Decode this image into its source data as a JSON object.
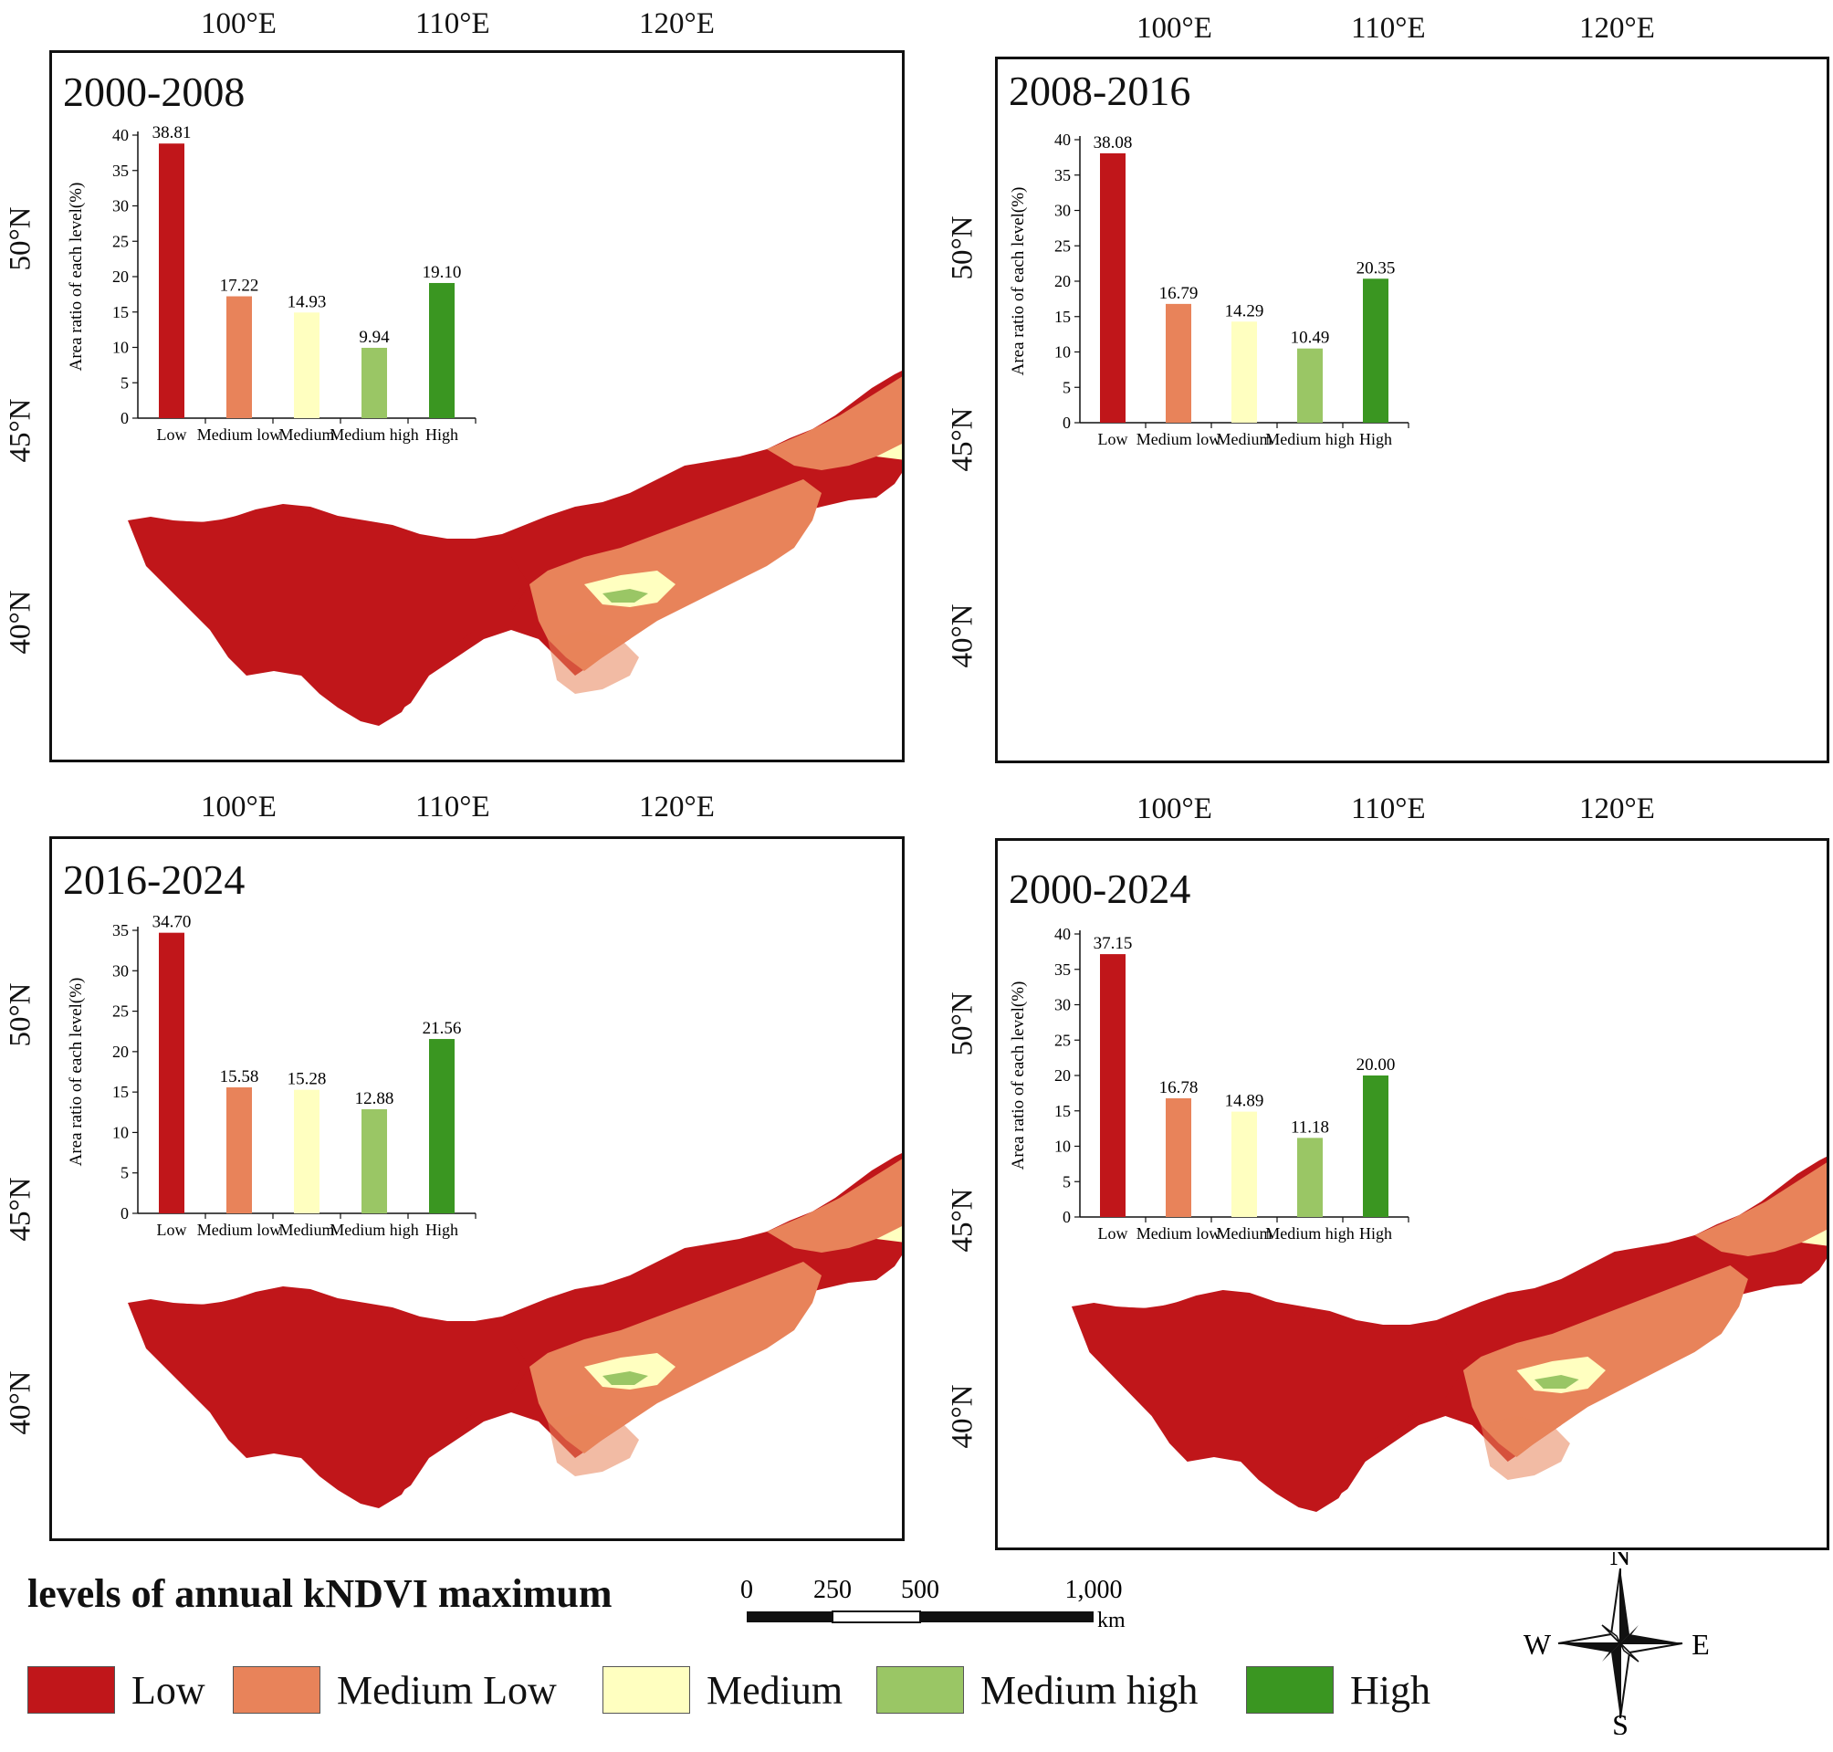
{
  "colors": {
    "low": "#c0161a",
    "medium_low": "#e8835a",
    "medium": "#ffffc0",
    "medium_high": "#9ac665",
    "high": "#3a9621"
  },
  "panels": [
    {
      "period": "2000-2008",
      "lon_labels": [
        "100°E",
        "110°E",
        "120°E"
      ],
      "lat_labels": [
        "50°N",
        "45°N",
        "40°N"
      ],
      "chart_ylabel": "Area ratio of each level(%)",
      "chart_ymax": 40,
      "chart_ticks": [
        "0",
        "5",
        "10",
        "15",
        "20",
        "25",
        "30",
        "35",
        "40"
      ],
      "categories": [
        "Low",
        "Medium low",
        "Medium",
        "Medium high",
        "High"
      ],
      "values": [
        38.81,
        17.22,
        14.93,
        9.94,
        19.1
      ],
      "value_labels": [
        "38.81",
        "17.22",
        "14.93",
        "9.94",
        "19.10"
      ]
    },
    {
      "period": "2008-2016",
      "lon_labels": [
        "100°E",
        "110°E",
        "120°E"
      ],
      "lat_labels": [
        "50°N",
        "45°N",
        "40°N"
      ],
      "chart_ylabel": "Area ratio of each level(%)",
      "chart_ymax": 40,
      "chart_ticks": [
        "0",
        "5",
        "10",
        "15",
        "20",
        "25",
        "30",
        "35",
        "40"
      ],
      "categories": [
        "Low",
        "Medium low",
        "Medium",
        "Medium high",
        "High"
      ],
      "values": [
        38.08,
        16.79,
        14.29,
        10.49,
        20.35
      ],
      "value_labels": [
        "38.08",
        "16.79",
        "14.29",
        "10.49",
        "20.35"
      ]
    },
    {
      "period": "2016-2024",
      "lon_labels": [
        "100°E",
        "110°E",
        "120°E"
      ],
      "lat_labels": [
        "50°N",
        "45°N",
        "40°N"
      ],
      "chart_ylabel": "Area ratio of each level(%)",
      "chart_ymax": 35,
      "chart_ticks": [
        "0",
        "5",
        "10",
        "15",
        "20",
        "25",
        "30",
        "35"
      ],
      "categories": [
        "Low",
        "Medium low",
        "Medium",
        "Medium high",
        "High"
      ],
      "values": [
        34.7,
        15.58,
        15.28,
        12.88,
        21.56
      ],
      "value_labels": [
        "34.70",
        "15.58",
        "15.28",
        "12.88",
        "21.56"
      ]
    },
    {
      "period": "2000-2024",
      "lon_labels": [
        "100°E",
        "110°E",
        "120°E"
      ],
      "lat_labels": [
        "50°N",
        "45°N",
        "40°N"
      ],
      "chart_ylabel": "Area ratio of each level(%)",
      "chart_ymax": 40,
      "chart_ticks": [
        "0",
        "5",
        "10",
        "15",
        "20",
        "25",
        "30",
        "35",
        "40"
      ],
      "categories": [
        "Low",
        "Medium low",
        "Medium",
        "Medium high",
        "High"
      ],
      "values": [
        37.15,
        16.78,
        14.89,
        11.18,
        20.0
      ],
      "value_labels": [
        "37.15",
        "16.78",
        "14.89",
        "11.18",
        "20.00"
      ]
    }
  ],
  "legend": {
    "title": "levels of annual kNDVI maximum",
    "items": [
      "Low",
      "Medium Low",
      "Medium",
      "Medium high",
      "High"
    ]
  },
  "scale_bar": {
    "ticks": [
      "0",
      "250",
      "500",
      "1,000"
    ],
    "unit": "km"
  },
  "compass": {
    "n": "N",
    "s": "S",
    "e": "E",
    "w": "W"
  },
  "chart_data": [
    {
      "type": "bar",
      "title": "2000-2008",
      "ylabel": "Area ratio of each level(%)",
      "categories": [
        "Low",
        "Medium low",
        "Medium",
        "Medium high",
        "High"
      ],
      "values": [
        38.81,
        17.22,
        14.93,
        9.94,
        19.1
      ],
      "ylim": [
        0,
        40
      ]
    },
    {
      "type": "bar",
      "title": "2008-2016",
      "ylabel": "Area ratio of each level(%)",
      "categories": [
        "Low",
        "Medium low",
        "Medium",
        "Medium high",
        "High"
      ],
      "values": [
        38.08,
        16.79,
        14.29,
        10.49,
        20.35
      ],
      "ylim": [
        0,
        40
      ]
    },
    {
      "type": "bar",
      "title": "2016-2024",
      "ylabel": "Area ratio of each level(%)",
      "categories": [
        "Low",
        "Medium low",
        "Medium",
        "Medium high",
        "High"
      ],
      "values": [
        34.7,
        15.58,
        15.28,
        12.88,
        21.56
      ],
      "ylim": [
        0,
        35
      ]
    },
    {
      "type": "bar",
      "title": "2000-2024",
      "ylabel": "Area ratio of each level(%)",
      "categories": [
        "Low",
        "Medium low",
        "Medium",
        "Medium high",
        "High"
      ],
      "values": [
        37.15,
        16.78,
        14.89,
        11.18,
        20.0
      ],
      "ylim": [
        0,
        40
      ]
    }
  ]
}
